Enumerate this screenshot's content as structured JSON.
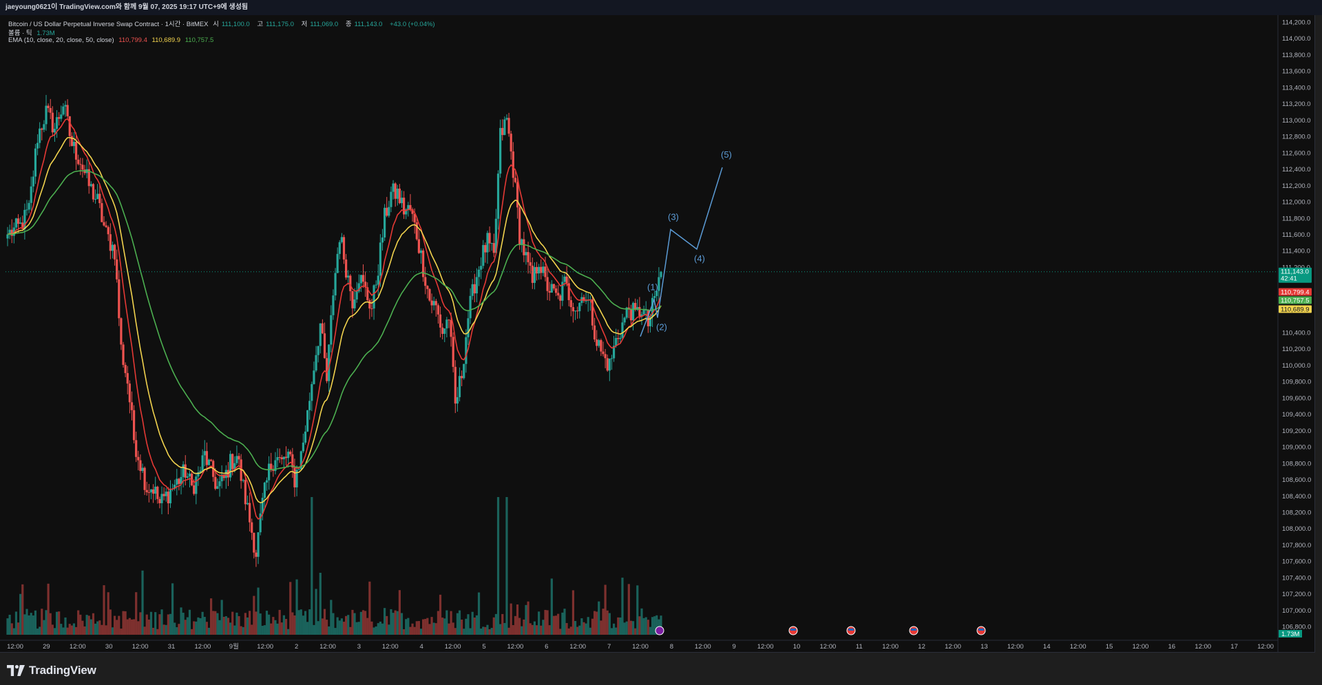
{
  "topbar": {
    "text": "jaeyoung0621이 TradingView.com와 함께 9월 07, 2025 19:17 UTC+9에 생성됨"
  },
  "legend": {
    "symbol": "Bitcoin / US Dollar Perpetual Inverse Swap Contract · 1시간 · BitMEX",
    "o_label": "시",
    "o_value": "111,100.0",
    "h_label": "고",
    "h_value": "111,175.0",
    "l_label": "저",
    "l_value": "111,069.0",
    "c_label": "종",
    "c_value": "111,143.0",
    "change": "+43.0 (+0.04%)",
    "volume_label": "볼륨 · 틱",
    "volume_value": "1.73M",
    "ema_label": "EMA (10, close, 20, close, 50, close)",
    "ema10": "110,799.4",
    "ema20": "110,689.9",
    "ema50": "110,757.5"
  },
  "colors": {
    "up": "#26a69a",
    "down": "#ef5350",
    "ema10": "#e53935",
    "ema20": "#f2d34e",
    "ema50": "#4caf50",
    "wave": "#5b9bd5",
    "background": "#0f0f0f"
  },
  "chart_data": {
    "type": "candlestick",
    "title": "Bitcoin / US Dollar Perpetual Inverse Swap Contract · 1시간 · BitMEX",
    "ylim": [
      106700,
      114250
    ],
    "y_ticks": [
      "114,200.0",
      "114,000.0",
      "113,800.0",
      "113,600.0",
      "113,400.0",
      "113,200.0",
      "113,000.0",
      "112,800.0",
      "112,600.0",
      "112,400.0",
      "112,200.0",
      "112,000.0",
      "111,800.0",
      "111,600.0",
      "111,400.0",
      "111,200.0",
      "110,400.0",
      "110,200.0",
      "110,000.0",
      "109,800.0",
      "109,600.0",
      "109,400.0",
      "109,200.0",
      "109,000.0",
      "108,800.0",
      "108,600.0",
      "108,400.0",
      "108,200.0",
      "108,000.0",
      "107,800.0",
      "107,600.0",
      "107,400.0",
      "107,200.0",
      "107,000.0",
      "106,800.0"
    ],
    "x_ticks": [
      "12:00",
      "29",
      "12:00",
      "30",
      "12:00",
      "31",
      "12:00",
      "9월",
      "12:00",
      "2",
      "12:00",
      "3",
      "12:00",
      "4",
      "12:00",
      "5",
      "12:00",
      "6",
      "12:00",
      "7",
      "12:00",
      "8",
      "12:00",
      "9",
      "12:00",
      "10",
      "12:00",
      "11",
      "12:00",
      "12",
      "12:00",
      "13",
      "12:00",
      "14",
      "12:00",
      "15",
      "12:00",
      "16",
      "12:00",
      "17",
      "12:00"
    ],
    "close_path": [
      [
        0,
        111600
      ],
      [
        6,
        111700
      ],
      [
        10,
        111900
      ],
      [
        14,
        112800
      ],
      [
        18,
        113100
      ],
      [
        22,
        112900
      ],
      [
        26,
        113200
      ],
      [
        30,
        112700
      ],
      [
        34,
        112500
      ],
      [
        38,
        112200
      ],
      [
        42,
        112000
      ],
      [
        46,
        111600
      ],
      [
        50,
        111400
      ],
      [
        53,
        110200
      ],
      [
        56,
        109800
      ],
      [
        59,
        109100
      ],
      [
        62,
        108800
      ],
      [
        65,
        108500
      ],
      [
        68,
        108500
      ],
      [
        71,
        108300
      ],
      [
        74,
        108400
      ],
      [
        77,
        108500
      ],
      [
        80,
        108600
      ],
      [
        83,
        108700
      ],
      [
        86,
        108500
      ],
      [
        89,
        108650
      ],
      [
        92,
        108900
      ],
      [
        95,
        108700
      ],
      [
        98,
        108500
      ],
      [
        101,
        108600
      ],
      [
        104,
        108800
      ],
      [
        107,
        108900
      ],
      [
        110,
        108500
      ],
      [
        113,
        108100
      ],
      [
        116,
        107700
      ],
      [
        119,
        108300
      ],
      [
        122,
        108700
      ],
      [
        125,
        108900
      ],
      [
        128,
        108800
      ],
      [
        131,
        108900
      ],
      [
        134,
        108600
      ],
      [
        137,
        108900
      ],
      [
        140,
        109400
      ],
      [
        143,
        110000
      ],
      [
        146,
        110500
      ],
      [
        149,
        109800
      ],
      [
        152,
        110900
      ],
      [
        155,
        111600
      ],
      [
        158,
        111200
      ],
      [
        161,
        110800
      ],
      [
        164,
        111100
      ],
      [
        167,
        110900
      ],
      [
        170,
        110700
      ],
      [
        173,
        111200
      ],
      [
        176,
        111800
      ],
      [
        179,
        112100
      ],
      [
        182,
        112100
      ],
      [
        185,
        111900
      ],
      [
        188,
        111900
      ],
      [
        191,
        111600
      ],
      [
        194,
        111200
      ],
      [
        197,
        110800
      ],
      [
        200,
        110700
      ],
      [
        203,
        110400
      ],
      [
        206,
        110600
      ],
      [
        209,
        109500
      ],
      [
        212,
        109900
      ],
      [
        215,
        110600
      ],
      [
        218,
        111000
      ],
      [
        221,
        111300
      ],
      [
        224,
        111500
      ],
      [
        227,
        111300
      ],
      [
        230,
        112800
      ],
      [
        233,
        113000
      ],
      [
        236,
        112400
      ],
      [
        239,
        111600
      ],
      [
        242,
        111300
      ],
      [
        245,
        111000
      ],
      [
        248,
        111300
      ],
      [
        251,
        111000
      ],
      [
        254,
        110900
      ],
      [
        257,
        110800
      ],
      [
        260,
        111000
      ],
      [
        263,
        110800
      ],
      [
        266,
        110700
      ],
      [
        269,
        110900
      ],
      [
        272,
        110700
      ],
      [
        275,
        110300
      ],
      [
        278,
        110100
      ],
      [
        281,
        110000
      ],
      [
        284,
        110300
      ],
      [
        287,
        110500
      ],
      [
        290,
        110700
      ],
      [
        293,
        110600
      ],
      [
        296,
        110700
      ],
      [
        299,
        110500
      ],
      [
        302,
        110800
      ],
      [
        305,
        111143
      ]
    ],
    "ema_series": [
      {
        "name": "EMA 10",
        "value": "110,799.4"
      },
      {
        "name": "EMA 20",
        "value": "110,689.9"
      },
      {
        "name": "EMA 50",
        "value": "110,757.5"
      }
    ],
    "price_tags": [
      {
        "label": "111,143.0",
        "sub": "42:41",
        "value": 111143,
        "color": "#089981"
      },
      {
        "label": "110,799.4",
        "value": 110799.4,
        "color": "#e53935"
      },
      {
        "label": "110,757.5",
        "value": 110757.5,
        "color": "#4caf50"
      },
      {
        "label": "110,689.9",
        "value": 110689.9,
        "color": "#f2d34e"
      }
    ],
    "volume_tag": "1.73M",
    "elliott_waves": [
      {
        "label": "(1)",
        "price": 110800
      },
      {
        "label": "(2)",
        "price": 110580
      },
      {
        "label": "(3)",
        "price": 111660
      },
      {
        "label": "(4)",
        "price": 111420
      },
      {
        "label": "(5)",
        "price": 112420
      }
    ]
  },
  "footer": {
    "brand": "TradingView"
  }
}
